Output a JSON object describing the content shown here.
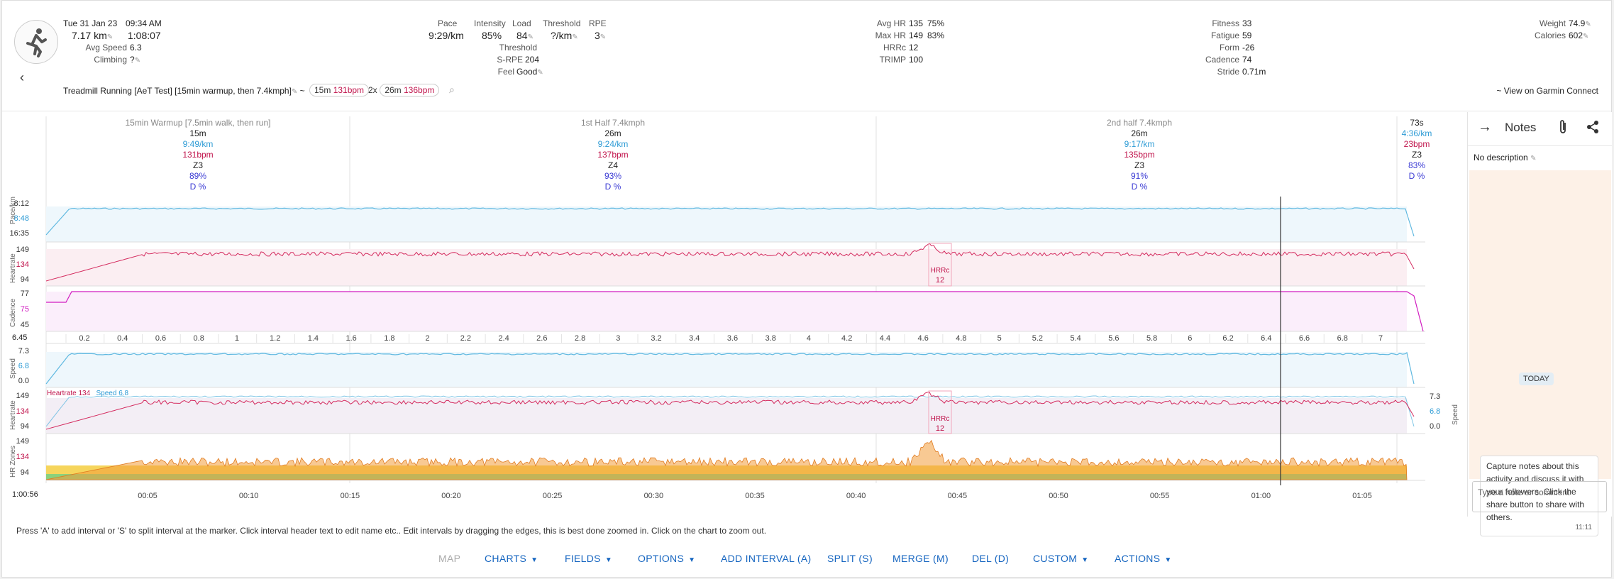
{
  "activity": {
    "date": "Tue 31 Jan 23",
    "time": "09:34 AM",
    "distance": "7.17 km",
    "duration": "1:08:07",
    "avg_speed_label": "Avg Speed",
    "avg_speed": "6.3",
    "climbing_label": "Climbing",
    "climbing": "?",
    "name": "Treadmill Running [AeT Test] [15min warmup, then 7.4kmph]",
    "tilde": "~",
    "tags": [
      {
        "prefix": "",
        "dur": "15m",
        "hr": "131bpm"
      },
      {
        "prefix": "2x",
        "dur": "26m",
        "hr": "136bpm"
      }
    ],
    "garmin_link": "~ View on Garmin Connect"
  },
  "stats": {
    "pace_label": "Pace",
    "pace": "9:29/km",
    "intensity_label": "Intensity",
    "intensity": "85%",
    "load_label": "Load",
    "load": "84",
    "threshold_label": "Threshold",
    "threshold": "?/km",
    "rpe_label": "RPE",
    "rpe": "3",
    "threshold2_label": "Threshold",
    "srpe_label": "S-RPE",
    "srpe": "204",
    "feel_label": "Feel",
    "feel": "Good",
    "avg_hr_label": "Avg HR",
    "avg_hr": "135",
    "avg_hr_pct": "75%",
    "max_hr_label": "Max HR",
    "max_hr": "149",
    "max_hr_pct": "83%",
    "hrrc_label": "HRRc",
    "hrrc": "12",
    "trimp_label": "TRIMP",
    "trimp": "100",
    "fitness_label": "Fitness",
    "fitness": "33",
    "fatigue_label": "Fatigue",
    "fatigue": "59",
    "form_label": "Form",
    "form": "-26",
    "cadence_label": "Cadence",
    "cadence": "74",
    "stride_label": "Stride",
    "stride": "0.71m",
    "weight_label": "Weight",
    "weight": "74.9",
    "calories_label": "Calories",
    "calories": "602"
  },
  "intervals": [
    {
      "title": "15min Warmup [7.5min walk, then run]",
      "dur": "15m",
      "pace": "9:49/km",
      "hr": "131bpm",
      "zone": "Z3",
      "pct": "89%",
      "d": "D %"
    },
    {
      "title": "1st Half 7.4kmph",
      "dur": "26m",
      "pace": "9:24/km",
      "hr": "137bpm",
      "zone": "Z4",
      "pct": "93%",
      "d": "D %"
    },
    {
      "title": "2nd half 7.4kmph",
      "dur": "26m",
      "pace": "9:17/km",
      "hr": "135bpm",
      "zone": "Z3",
      "pct": "91%",
      "d": "D %"
    },
    {
      "title": "",
      "dur": "73s",
      "pace": "4:36/km",
      "hr": "23bpm",
      "zone": "Z3",
      "pct": "83%",
      "d": "D %"
    }
  ],
  "charts": {
    "pace": {
      "label": "Pace/km",
      "ticks": [
        "8:12",
        "8:48",
        "16:35"
      ]
    },
    "hr": {
      "label": "Heartrate",
      "ticks": [
        "149",
        "134",
        "94"
      ]
    },
    "cadence": {
      "label": "Cadence",
      "ticks": [
        "77",
        "75",
        "45"
      ]
    },
    "distance_start": "6.45",
    "distance_ticks": [
      "0.2",
      "0.4",
      "0.6",
      "0.8",
      "1",
      "1.2",
      "1.4",
      "1.6",
      "1.8",
      "2",
      "2.2",
      "2.4",
      "2.6",
      "2.8",
      "3",
      "3.2",
      "3.4",
      "3.6",
      "3.8",
      "4",
      "4.2",
      "4.4",
      "4.6",
      "4.8",
      "5",
      "5.2",
      "5.4",
      "5.6",
      "5.8",
      "6",
      "6.2",
      "6.4",
      "6.6",
      "6.8",
      "7"
    ],
    "speed": {
      "label": "Speed",
      "ticks": [
        "7.3",
        "6.8",
        "0.0"
      ]
    },
    "combo": {
      "label": "Heartrate",
      "ticks": [
        "149",
        "134",
        "94"
      ],
      "legend_hr": "Heartrate 134",
      "legend_speed": "Speed 6.8",
      "right_ticks": [
        "7.3",
        "6.8",
        "0.0"
      ],
      "right_label": "Speed"
    },
    "zones": {
      "label": "HR Zones",
      "ticks": [
        "149",
        "134",
        "94"
      ]
    },
    "hrrc_label": "HRRc",
    "hrrc_value": "12",
    "time_start": "1:00:56",
    "time_ticks": [
      "00:05",
      "00:10",
      "00:15",
      "00:20",
      "00:25",
      "00:30",
      "00:35",
      "00:40",
      "00:45",
      "00:50",
      "00:55",
      "01:00",
      "01:05"
    ]
  },
  "notes": {
    "title": "Notes",
    "description": "No description",
    "today": "TODAY",
    "bubble_text": "Capture notes about this activity and discuss it with your followers. Click the share button to share with others.",
    "bubble_time": "11:11",
    "placeholder": "Type a note or comment"
  },
  "help_text": "Press 'A' to add interval or 'S' to split interval at the marker. Click interval header text to edit name etc.. Edit intervals by dragging the edges, this is best done zoomed in. Click on the chart to zoom out.",
  "toolbar": {
    "map": "MAP",
    "charts": "CHARTS",
    "fields": "FIELDS",
    "options": "OPTIONS",
    "add_interval": "ADD INTERVAL (A)",
    "split": "SPLIT (S)",
    "merge": "MERGE (M)",
    "del": "DEL (D)",
    "custom": "CUSTOM",
    "actions": "ACTIONS"
  },
  "colors": {
    "pace": "#5fb8e0",
    "hr": "#d42a5e",
    "cadence": "#d11cc0",
    "zone_yellow": "#f6d55c",
    "zone_orange": "#f39c3a",
    "zone_green": "#8bd17c",
    "link": "#1565c0"
  }
}
